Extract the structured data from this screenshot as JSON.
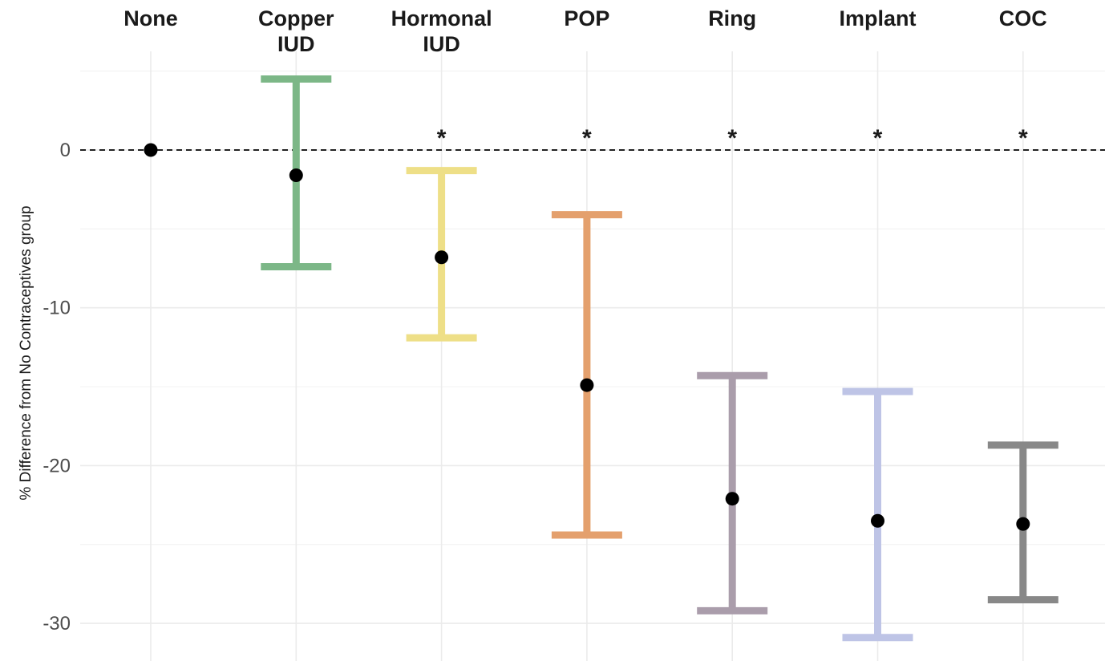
{
  "chart_data": {
    "type": "errorbar",
    "ylabel": "% Difference from No Contraceptives group",
    "ylim": [
      -31.5,
      6
    ],
    "yticks": [
      0,
      -10,
      -20,
      -30
    ],
    "grid": true,
    "reference_line": 0,
    "categories": [
      {
        "label": [
          "None"
        ],
        "estimate": 0,
        "lower": null,
        "upper": null,
        "significant": false,
        "color": "#000000"
      },
      {
        "label": [
          "Copper",
          "IUD"
        ],
        "estimate": -1.6,
        "lower": -7.4,
        "upper": 4.5,
        "significant": false,
        "color": "#7cb787"
      },
      {
        "label": [
          "Hormonal",
          "IUD"
        ],
        "estimate": -6.8,
        "lower": -11.9,
        "upper": -1.3,
        "significant": true,
        "color": "#eedf87"
      },
      {
        "label": [
          "POP"
        ],
        "estimate": -14.9,
        "lower": -24.4,
        "upper": -4.1,
        "significant": true,
        "color": "#e4a06d"
      },
      {
        "label": [
          "Ring"
        ],
        "estimate": -22.1,
        "lower": -29.2,
        "upper": -14.3,
        "significant": true,
        "color": "#aa9dab"
      },
      {
        "label": [
          "Implant"
        ],
        "estimate": -23.5,
        "lower": -30.9,
        "upper": -15.3,
        "significant": true,
        "color": "#bec4e6"
      },
      {
        "label": [
          "COC"
        ],
        "estimate": -23.7,
        "lower": -28.5,
        "upper": -18.7,
        "significant": true,
        "color": "#888888"
      }
    ],
    "significance_marker": "*"
  }
}
